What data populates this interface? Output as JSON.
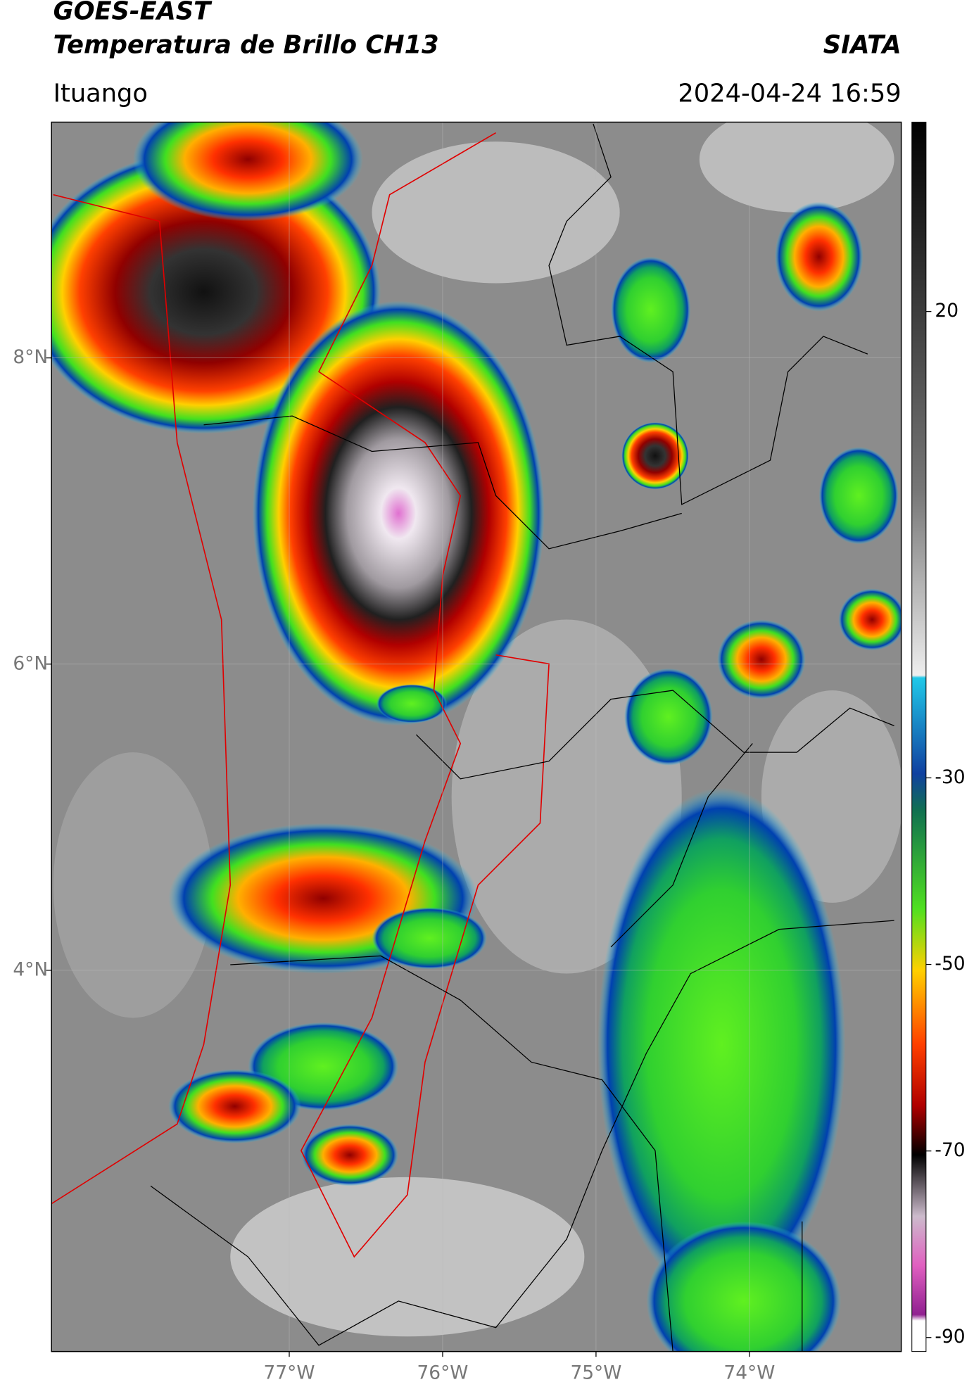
{
  "header": {
    "title": "GOES-EAST",
    "subtitle": "Temperatura de Brillo CH13",
    "source": "SIATA",
    "location": "Ituango",
    "timestamp": "2024-04-24 16:59"
  },
  "map": {
    "xlim": [
      -78.55,
      -73.01
    ],
    "ylim": [
      1.51,
      9.54
    ],
    "xticks": [
      {
        "value": -77,
        "label": "77°W"
      },
      {
        "value": -76,
        "label": "76°W"
      },
      {
        "value": -75,
        "label": "75°W"
      },
      {
        "value": -74,
        "label": "74°W"
      }
    ],
    "yticks": [
      {
        "value": 8,
        "label": "8°N"
      },
      {
        "value": 6,
        "label": "6°N"
      },
      {
        "value": 4,
        "label": "4°N"
      }
    ]
  },
  "colorbar": {
    "vlim": [
      -91.5,
      40.3
    ],
    "ticks": [
      20,
      -30,
      -50,
      -70,
      -90
    ]
  }
}
